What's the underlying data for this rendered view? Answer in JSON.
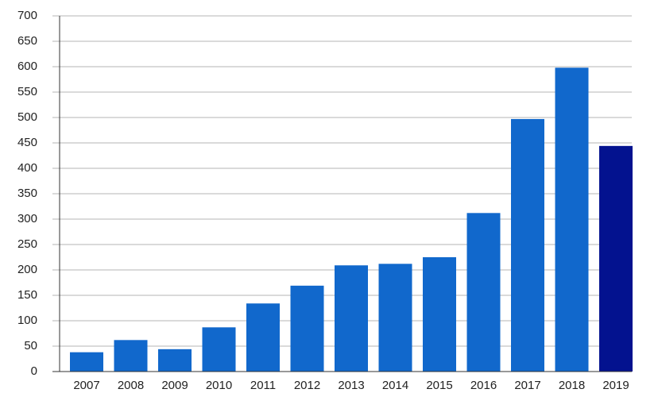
{
  "chart_data": {
    "type": "bar",
    "categories": [
      "2007",
      "2008",
      "2009",
      "2010",
      "2011",
      "2012",
      "2013",
      "2014",
      "2015",
      "2016",
      "2017",
      "2018",
      "2019"
    ],
    "values": [
      38,
      62,
      44,
      87,
      134,
      169,
      209,
      212,
      225,
      312,
      497,
      598,
      444
    ],
    "colors": [
      "#1168cc",
      "#1168cc",
      "#1168cc",
      "#1168cc",
      "#1168cc",
      "#1168cc",
      "#1168cc",
      "#1168cc",
      "#1168cc",
      "#1168cc",
      "#1168cc",
      "#1168cc",
      "#03128f"
    ],
    "ylim": [
      0,
      700
    ],
    "yticks": [
      0,
      50,
      100,
      150,
      200,
      250,
      300,
      350,
      400,
      450,
      500,
      550,
      600,
      650,
      700
    ],
    "grid": true
  }
}
